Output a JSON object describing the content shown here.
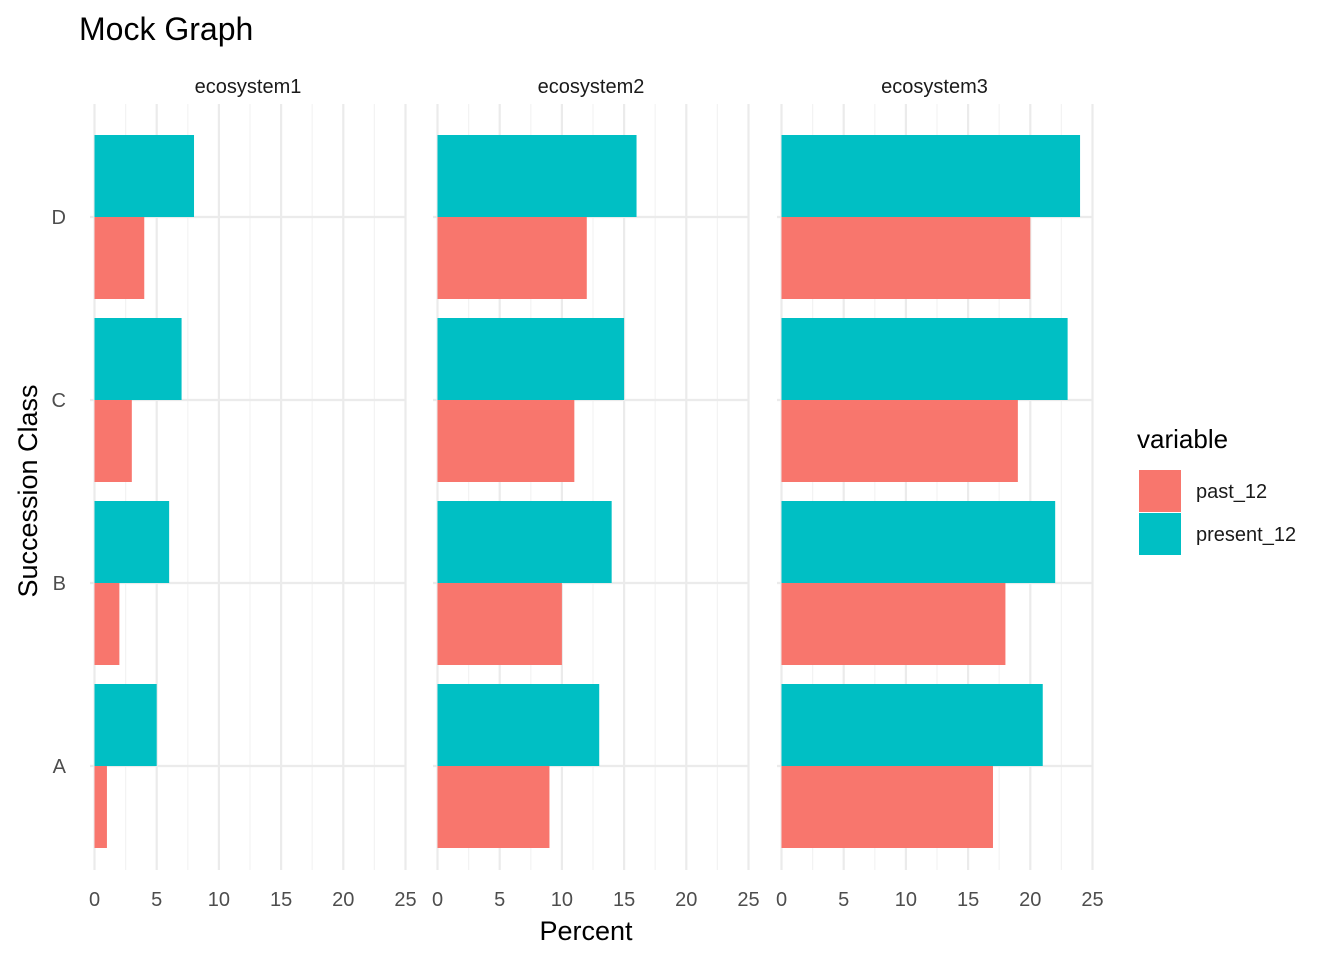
{
  "chart_data": {
    "type": "bar",
    "orientation": "horizontal",
    "title": "Mock Graph",
    "xlabel": "Percent",
    "ylabel": "Succession Class",
    "xlim": [
      0,
      25
    ],
    "x_ticks": [
      0,
      5,
      10,
      15,
      20,
      25
    ],
    "categories": [
      "A",
      "B",
      "C",
      "D"
    ],
    "legend": {
      "title": "variable",
      "position": "right"
    },
    "grid": true,
    "panels": [
      {
        "name": "ecosystem1",
        "series": [
          {
            "name": "past_12",
            "values": [
              1,
              2,
              3,
              4
            ]
          },
          {
            "name": "present_12",
            "values": [
              5,
              6,
              7,
              8
            ]
          }
        ]
      },
      {
        "name": "ecosystem2",
        "series": [
          {
            "name": "past_12",
            "values": [
              9,
              10,
              11,
              12
            ]
          },
          {
            "name": "present_12",
            "values": [
              13,
              14,
              15,
              16
            ]
          }
        ]
      },
      {
        "name": "ecosystem3",
        "series": [
          {
            "name": "past_12",
            "values": [
              17,
              18,
              19,
              20
            ]
          },
          {
            "name": "present_12",
            "values": [
              21,
              22,
              23,
              24
            ]
          }
        ]
      }
    ],
    "colors": {
      "past_12": "#F8766D",
      "present_12": "#00BFC4"
    }
  }
}
